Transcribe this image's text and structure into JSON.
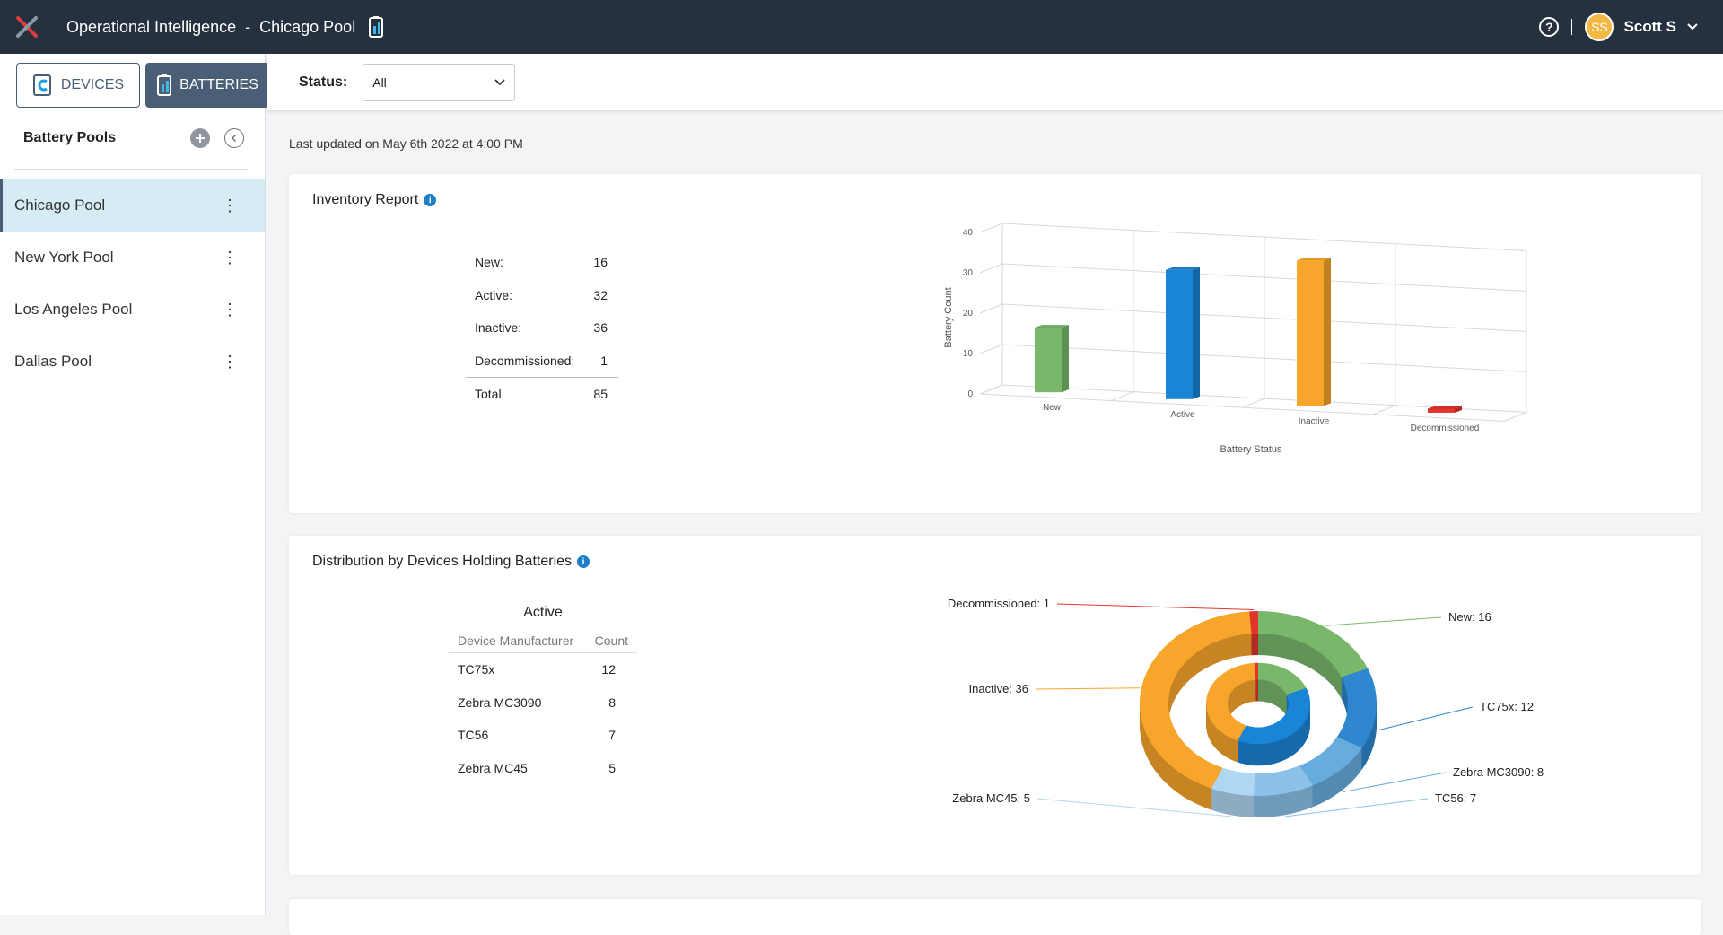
{
  "header": {
    "app_title": "Operational Intelligence",
    "separator": "-",
    "pool_title": "Chicago Pool",
    "user_initials": "SS",
    "user_name": "Scott S",
    "help_label": "?"
  },
  "sidebar": {
    "devices_label": "DEVICES",
    "batteries_label": "BATTERIES",
    "pools_heading": "Battery Pools",
    "pools": [
      {
        "label": "Chicago Pool",
        "active": true
      },
      {
        "label": "New York Pool",
        "active": false
      },
      {
        "label": "Los Angeles Pool",
        "active": false
      },
      {
        "label": "Dallas Pool",
        "active": false
      }
    ]
  },
  "filter": {
    "status_label": "Status:",
    "status_value": "All"
  },
  "last_updated": "Last updated on May 6th 2022 at 4:00 PM",
  "inventory": {
    "title": "Inventory Report",
    "rows": [
      {
        "label": "New:",
        "value": "16"
      },
      {
        "label": "Active:",
        "value": "32"
      },
      {
        "label": "Inactive:",
        "value": "36"
      },
      {
        "label": "Decommissioned:",
        "value": "1"
      }
    ],
    "total_label": "Total",
    "total_value": "85"
  },
  "distribution": {
    "title": "Distribution by Devices Holding Batteries",
    "table_title": "Active",
    "col_manufacturer": "Device Manufacturer",
    "col_count": "Count",
    "rows": [
      {
        "name": "TC75x",
        "count": "12"
      },
      {
        "name": "Zebra MC3090",
        "count": "8"
      },
      {
        "name": "TC56",
        "count": "7"
      },
      {
        "name": "Zebra MC45",
        "count": "5"
      }
    ]
  },
  "chart_data": [
    {
      "type": "bar",
      "title": "",
      "xlabel": "Battery Status",
      "ylabel": "Battery Count",
      "ylim": [
        0,
        40
      ],
      "yticks": [
        0,
        10,
        20,
        30,
        40
      ],
      "categories": [
        "New",
        "Active",
        "Inactive",
        "Decommissioned"
      ],
      "values": [
        16,
        32,
        36,
        1
      ],
      "colors": [
        "#79b86b",
        "#1a84d6",
        "#f8a52c",
        "#e0352a"
      ],
      "grid": true
    },
    {
      "type": "pie",
      "variant": "3d-donut",
      "outer_ring": [
        {
          "label": "New: 16",
          "value": 16,
          "color": "#79b86b"
        },
        {
          "label": "TC75x: 12",
          "value": 12,
          "color": "#2e87cf"
        },
        {
          "label": "Zebra MC3090: 8",
          "value": 8,
          "color": "#67acdf"
        },
        {
          "label": "TC56: 7",
          "value": 7,
          "color": "#8cc2ea"
        },
        {
          "label": "Zebra MC45: 5",
          "value": 5,
          "color": "#b0d7f1"
        },
        {
          "label": "Inactive: 36",
          "value": 36,
          "color": "#f8a52c"
        },
        {
          "label": "Decommissioned: 1",
          "value": 1,
          "color": "#e0352a"
        }
      ],
      "inner_ring": [
        {
          "value": 16,
          "color": "#79b86b"
        },
        {
          "value": 32,
          "color": "#1a84d6"
        },
        {
          "value": 36,
          "color": "#f8a52c"
        },
        {
          "value": 1,
          "color": "#e0352a"
        }
      ]
    }
  ],
  "colors": {
    "topbar": "#25313e",
    "accent": "#4a5f76",
    "active_pool_bg": "#d6ecf5",
    "info": "#1c7fc8"
  }
}
